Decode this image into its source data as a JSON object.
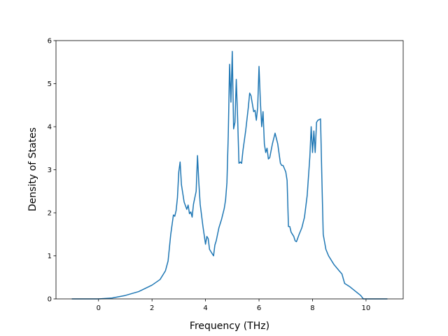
{
  "chart_data": {
    "type": "line",
    "xlabel": "Frequency (THz)",
    "ylabel": "Density of States",
    "x": [
      -1,
      0,
      0.5,
      1,
      1.5,
      2,
      2.3,
      2.5,
      2.6,
      2.7,
      2.8,
      2.85,
      2.9,
      2.95,
      3.0,
      3.05,
      3.1,
      3.2,
      3.3,
      3.35,
      3.4,
      3.45,
      3.5,
      3.55,
      3.65,
      3.7,
      3.75,
      3.8,
      3.9,
      4.0,
      4.05,
      4.1,
      4.15,
      4.2,
      4.3,
      4.35,
      4.4,
      4.5,
      4.6,
      4.7,
      4.75,
      4.8,
      4.85,
      4.9,
      4.95,
      5.0,
      5.05,
      5.1,
      5.15,
      5.2,
      5.25,
      5.3,
      5.35,
      5.4,
      5.5,
      5.6,
      5.65,
      5.7,
      5.8,
      5.85,
      5.9,
      5.95,
      6.0,
      6.05,
      6.1,
      6.15,
      6.2,
      6.25,
      6.3,
      6.35,
      6.4,
      6.5,
      6.6,
      6.7,
      6.8,
      6.85,
      6.9,
      7.0,
      7.05,
      7.1,
      7.15,
      7.2,
      7.3,
      7.35,
      7.4,
      7.5,
      7.6,
      7.7,
      7.8,
      7.9,
      7.95,
      8.0,
      8.05,
      8.1,
      8.15,
      8.2,
      8.3,
      8.35,
      8.4,
      8.5,
      8.6,
      8.8,
      9.0,
      9.1,
      9.2,
      9.4,
      9.6,
      9.8,
      9.9,
      10.8
    ],
    "values": [
      0,
      0,
      0.02,
      0.08,
      0.17,
      0.32,
      0.45,
      0.65,
      0.88,
      1.5,
      1.95,
      1.92,
      2.05,
      2.35,
      2.95,
      3.18,
      2.65,
      2.25,
      2.08,
      2.18,
      1.98,
      2.02,
      1.9,
      2.2,
      2.5,
      3.33,
      2.7,
      2.2,
      1.7,
      1.27,
      1.45,
      1.4,
      1.15,
      1.1,
      1.0,
      1.25,
      1.35,
      1.65,
      1.85,
      2.1,
      2.3,
      2.7,
      3.8,
      5.45,
      4.57,
      5.75,
      3.95,
      4.1,
      5.1,
      4.2,
      3.15,
      3.18,
      3.15,
      3.45,
      3.9,
      4.45,
      4.78,
      4.72,
      4.35,
      4.38,
      4.15,
      4.45,
      5.4,
      4.6,
      4.0,
      4.35,
      3.6,
      3.4,
      3.5,
      3.25,
      3.28,
      3.6,
      3.85,
      3.6,
      3.15,
      3.1,
      3.1,
      2.95,
      2.75,
      1.68,
      1.68,
      1.55,
      1.45,
      1.35,
      1.33,
      1.5,
      1.65,
      1.9,
      2.4,
      3.3,
      4.0,
      3.4,
      3.9,
      3.4,
      4.1,
      4.15,
      4.18,
      2.8,
      1.5,
      1.15,
      1.0,
      0.8,
      0.65,
      0.58,
      0.36,
      0.28,
      0.18,
      0.08,
      0.0,
      0.0
    ],
    "color": "#1f77b4",
    "xlim": [
      -1.59,
      11.39
    ],
    "xticks": [
      0,
      2,
      4,
      6,
      8,
      10
    ],
    "ylim": [
      0,
      6
    ],
    "yticks": [
      0,
      1,
      2,
      3,
      4,
      5,
      6
    ]
  }
}
